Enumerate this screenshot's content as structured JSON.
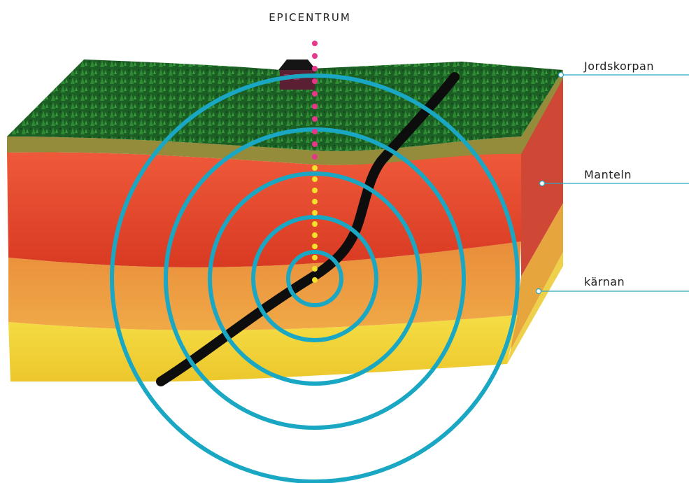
{
  "diagram": {
    "epicenter_label": "EPICENTRUM",
    "layers": [
      {
        "key": "crust",
        "label": "Jordskorpan"
      },
      {
        "key": "mantle",
        "label": "Manteln"
      },
      {
        "key": "core",
        "label": "kärnan"
      }
    ],
    "colors": {
      "forest": "#1f6b2a",
      "crust": "#8f8a3a",
      "mantle": "#e8452a",
      "orange": "#ee9d3b",
      "yellow": "#f3d23a",
      "fault": "#0d0d0d",
      "rings": "#1aa7c4",
      "dots_upper": "#e5368a",
      "dots_lower": "#f2e12a",
      "leader": "#2aa8c2"
    }
  }
}
